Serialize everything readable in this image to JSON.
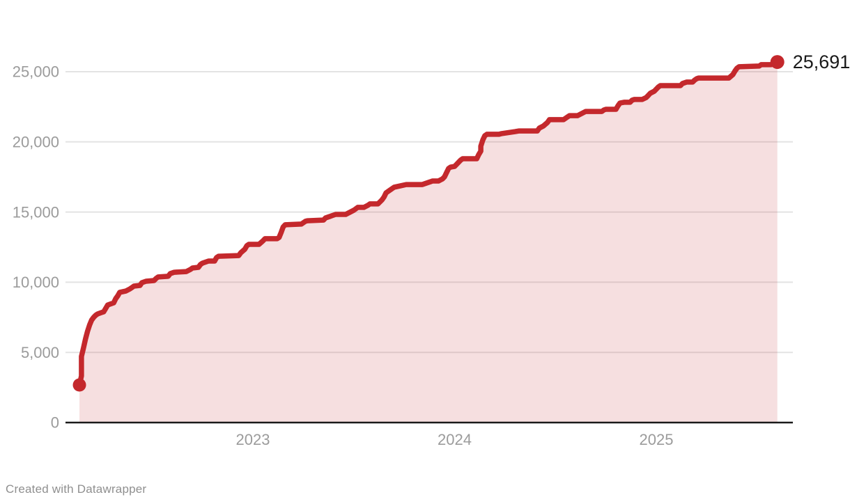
{
  "footer": {
    "attribution": "Created with Datawrapper"
  },
  "colors": {
    "line": "#c4282c",
    "fill": "#c4282c",
    "fill_opacity": 0.15,
    "grid": "#e3e3e3",
    "axis": "#1a1a1a",
    "tick_text": "#9b9b9b",
    "value_text": "#1a1a1a",
    "footer_text": "#8f8f8f",
    "background": "#ffffff"
  },
  "chart_data": {
    "type": "area",
    "title": "",
    "xlabel": "",
    "ylabel": "",
    "legend": "none",
    "grid": "horizontal",
    "end_label": "25,691",
    "end_value": 25691,
    "start_value": 2680,
    "xlim": [
      2022.06,
      2025.68
    ],
    "ylim": [
      0,
      27500
    ],
    "x_ticks": [
      {
        "value": 2023,
        "label": "2023"
      },
      {
        "value": 2024,
        "label": "2024"
      },
      {
        "value": 2025,
        "label": "2025"
      }
    ],
    "y_ticks": [
      {
        "value": 0,
        "label": "0"
      },
      {
        "value": 5000,
        "label": "5,000"
      },
      {
        "value": 10000,
        "label": "10,000"
      },
      {
        "value": 15000,
        "label": "15,000"
      },
      {
        "value": 20000,
        "label": "20,000"
      },
      {
        "value": 25000,
        "label": "25,000"
      }
    ],
    "points": [
      [
        2022.14,
        2680
      ],
      [
        2022.15,
        3320
      ],
      [
        2022.15,
        4070
      ],
      [
        2022.15,
        4710
      ],
      [
        2022.16,
        5310
      ],
      [
        2022.17,
        5950
      ],
      [
        2022.18,
        6500
      ],
      [
        2022.19,
        6940
      ],
      [
        2022.2,
        7290
      ],
      [
        2022.21,
        7490
      ],
      [
        2022.22,
        7640
      ],
      [
        2022.23,
        7740
      ],
      [
        2022.25,
        7840
      ],
      [
        2022.26,
        7890
      ],
      [
        2022.27,
        8130
      ],
      [
        2022.28,
        8380
      ],
      [
        2022.31,
        8530
      ],
      [
        2022.32,
        8830
      ],
      [
        2022.33,
        9030
      ],
      [
        2022.34,
        9280
      ],
      [
        2022.37,
        9370
      ],
      [
        2022.39,
        9520
      ],
      [
        2022.4,
        9620
      ],
      [
        2022.41,
        9720
      ],
      [
        2022.44,
        9770
      ],
      [
        2022.45,
        9970
      ],
      [
        2022.47,
        10070
      ],
      [
        2022.51,
        10120
      ],
      [
        2022.52,
        10270
      ],
      [
        2022.53,
        10370
      ],
      [
        2022.58,
        10420
      ],
      [
        2022.59,
        10610
      ],
      [
        2022.61,
        10710
      ],
      [
        2022.67,
        10760
      ],
      [
        2022.69,
        10910
      ],
      [
        2022.7,
        11010
      ],
      [
        2022.73,
        11060
      ],
      [
        2022.74,
        11260
      ],
      [
        2022.75,
        11360
      ],
      [
        2022.78,
        11510
      ],
      [
        2022.81,
        11510
      ],
      [
        2022.82,
        11760
      ],
      [
        2022.83,
        11850
      ],
      [
        2022.93,
        11900
      ],
      [
        2022.94,
        12100
      ],
      [
        2022.96,
        12350
      ],
      [
        2022.97,
        12600
      ],
      [
        2022.98,
        12700
      ],
      [
        2023.03,
        12700
      ],
      [
        2023.05,
        12950
      ],
      [
        2023.06,
        13100
      ],
      [
        2023.12,
        13100
      ],
      [
        2023.13,
        13190
      ],
      [
        2023.14,
        13540
      ],
      [
        2023.15,
        13940
      ],
      [
        2023.16,
        14090
      ],
      [
        2023.24,
        14140
      ],
      [
        2023.26,
        14340
      ],
      [
        2023.27,
        14380
      ],
      [
        2023.35,
        14430
      ],
      [
        2023.36,
        14580
      ],
      [
        2023.38,
        14680
      ],
      [
        2023.39,
        14730
      ],
      [
        2023.41,
        14830
      ],
      [
        2023.46,
        14830
      ],
      [
        2023.48,
        14980
      ],
      [
        2023.5,
        15130
      ],
      [
        2023.51,
        15230
      ],
      [
        2023.52,
        15330
      ],
      [
        2023.55,
        15330
      ],
      [
        2023.57,
        15480
      ],
      [
        2023.58,
        15580
      ],
      [
        2023.62,
        15580
      ],
      [
        2023.64,
        15870
      ],
      [
        2023.65,
        16070
      ],
      [
        2023.66,
        16370
      ],
      [
        2023.68,
        16570
      ],
      [
        2023.69,
        16670
      ],
      [
        2023.7,
        16770
      ],
      [
        2023.73,
        16860
      ],
      [
        2023.76,
        16960
      ],
      [
        2023.84,
        16960
      ],
      [
        2023.86,
        17060
      ],
      [
        2023.88,
        17160
      ],
      [
        2023.89,
        17210
      ],
      [
        2023.92,
        17210
      ],
      [
        2023.94,
        17360
      ],
      [
        2023.95,
        17510
      ],
      [
        2023.96,
        17810
      ],
      [
        2023.97,
        18100
      ],
      [
        2023.98,
        18200
      ],
      [
        2024.0,
        18250
      ],
      [
        2024.02,
        18550
      ],
      [
        2024.03,
        18700
      ],
      [
        2024.04,
        18800
      ],
      [
        2024.11,
        18800
      ],
      [
        2024.12,
        19100
      ],
      [
        2024.13,
        19340
      ],
      [
        2024.13,
        19690
      ],
      [
        2024.14,
        20140
      ],
      [
        2024.15,
        20440
      ],
      [
        2024.16,
        20540
      ],
      [
        2024.22,
        20540
      ],
      [
        2024.23,
        20580
      ],
      [
        2024.3,
        20730
      ],
      [
        2024.32,
        20780
      ],
      [
        2024.41,
        20780
      ],
      [
        2024.42,
        20980
      ],
      [
        2024.44,
        21130
      ],
      [
        2024.46,
        21380
      ],
      [
        2024.47,
        21580
      ],
      [
        2024.54,
        21580
      ],
      [
        2024.56,
        21780
      ],
      [
        2024.57,
        21870
      ],
      [
        2024.61,
        21870
      ],
      [
        2024.63,
        22020
      ],
      [
        2024.65,
        22170
      ],
      [
        2024.73,
        22170
      ],
      [
        2024.74,
        22270
      ],
      [
        2024.75,
        22320
      ],
      [
        2024.8,
        22320
      ],
      [
        2024.81,
        22570
      ],
      [
        2024.82,
        22770
      ],
      [
        2024.84,
        22820
      ],
      [
        2024.87,
        22820
      ],
      [
        2024.88,
        22970
      ],
      [
        2024.89,
        23020
      ],
      [
        2024.93,
        23020
      ],
      [
        2024.95,
        23160
      ],
      [
        2024.96,
        23310
      ],
      [
        2024.97,
        23460
      ],
      [
        2024.99,
        23610
      ],
      [
        2025.0,
        23760
      ],
      [
        2025.01,
        23910
      ],
      [
        2025.02,
        24010
      ],
      [
        2025.12,
        24010
      ],
      [
        2025.13,
        24160
      ],
      [
        2025.15,
        24260
      ],
      [
        2025.18,
        24260
      ],
      [
        2025.19,
        24400
      ],
      [
        2025.2,
        24500
      ],
      [
        2025.21,
        24550
      ],
      [
        2025.36,
        24550
      ],
      [
        2025.38,
        24800
      ],
      [
        2025.39,
        25050
      ],
      [
        2025.4,
        25250
      ],
      [
        2025.41,
        25350
      ],
      [
        2025.51,
        25400
      ],
      [
        2025.52,
        25500
      ],
      [
        2025.57,
        25500
      ],
      [
        2025.58,
        25640
      ],
      [
        2025.59,
        25660
      ],
      [
        2025.6,
        25691
      ]
    ]
  }
}
